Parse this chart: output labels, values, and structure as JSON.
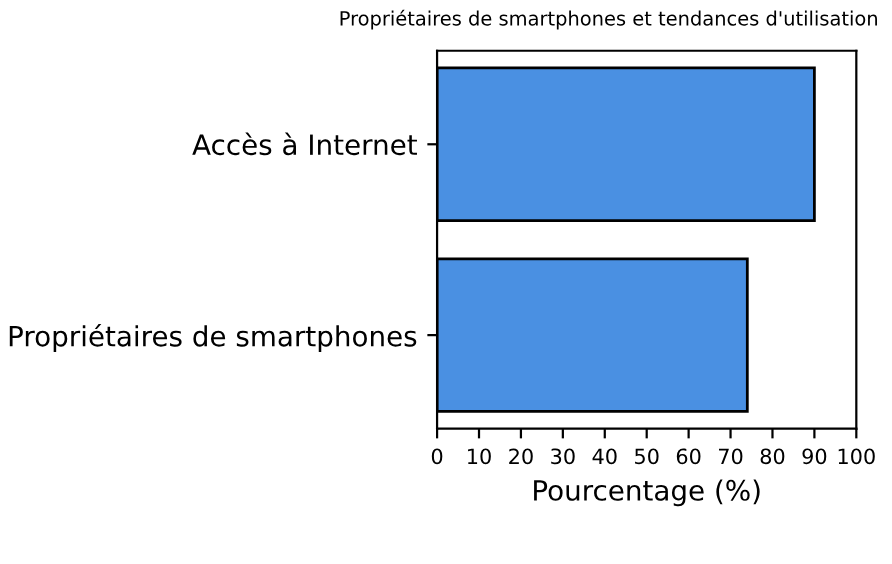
{
  "chart_data": {
    "type": "bar",
    "orientation": "horizontal",
    "title": "Propriétaires de smartphones et tendances d'utilisation",
    "xlabel": "Pourcentage (%)",
    "categories": [
      "Accès à Internet",
      "Propriétaires de smartphones"
    ],
    "values": [
      90,
      74
    ],
    "color": "#4a90e2",
    "xlim": [
      0,
      100
    ],
    "xticks": [
      0,
      10,
      20,
      30,
      40,
      50,
      60,
      70,
      80,
      90,
      100
    ],
    "grid": false
  }
}
